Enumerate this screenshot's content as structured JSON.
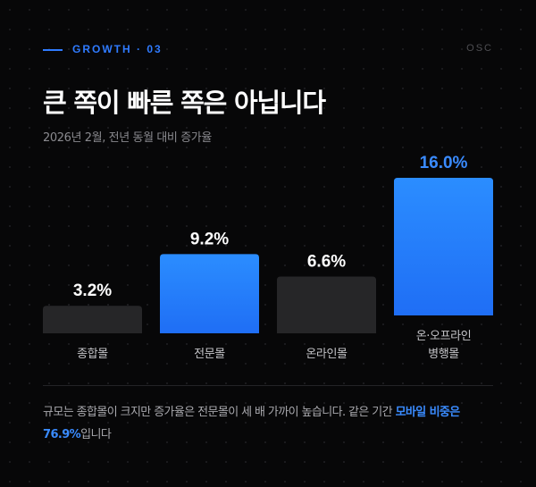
{
  "header": {
    "section_tag": "GROWTH · 03",
    "brand": "OSC"
  },
  "title": "큰 쪽이 빠른 쪽은 아닙니다",
  "subtitle": "2026년 2월, 전년 동월 대비 증가율",
  "colors": {
    "accent": "#2f7bff",
    "bar_highlight_top": "#2b8dff",
    "bar_highlight_bottom": "#1f6ef5",
    "bar_muted": "#262628",
    "value_highlight": "#3a8bff",
    "value_default": "#ffffff",
    "category_label": "#c4c4c8"
  },
  "chart_data": {
    "type": "bar",
    "title": "",
    "xlabel": "",
    "ylabel": "",
    "ylim": [
      0,
      18
    ],
    "grid": false,
    "unit": "%",
    "categories": [
      "종합몰",
      "전문몰",
      "온라인몰",
      "온·오프라인\n병행몰"
    ],
    "values": [
      3.2,
      9.2,
      6.6,
      16.0
    ],
    "value_labels": [
      "3.2%",
      "9.2%",
      "6.6%",
      "16.0%"
    ],
    "highlighted": [
      false,
      true,
      false,
      true
    ],
    "label_emphasis": [
      false,
      false,
      false,
      true
    ]
  },
  "footnote": {
    "text_before": "규모는 종합몰이 크지만 증가율은 전문몰이 세 배 가까이 높습니다. 같은 기간 ",
    "highlight": "모바일 비중은 76.9%",
    "text_after": "입니다"
  }
}
